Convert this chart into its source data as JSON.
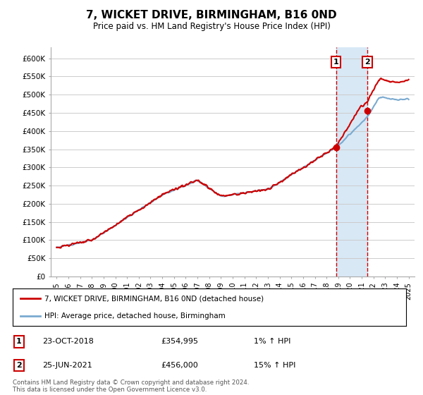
{
  "title": "7, WICKET DRIVE, BIRMINGHAM, B16 0ND",
  "subtitle": "Price paid vs. HM Land Registry's House Price Index (HPI)",
  "ylabel_ticks": [
    "£0",
    "£50K",
    "£100K",
    "£150K",
    "£200K",
    "£250K",
    "£300K",
    "£350K",
    "£400K",
    "£450K",
    "£500K",
    "£550K",
    "£600K"
  ],
  "ytick_values": [
    0,
    50000,
    100000,
    150000,
    200000,
    250000,
    300000,
    350000,
    400000,
    450000,
    500000,
    550000,
    600000
  ],
  "ylim": [
    0,
    630000
  ],
  "xlim_start": 1994.5,
  "xlim_end": 2025.5,
  "sale1_x": 2018.81,
  "sale1_y": 354995,
  "sale1_label": "1",
  "sale1_date": "23-OCT-2018",
  "sale1_price": "£354,995",
  "sale1_hpi": "1% ↑ HPI",
  "sale2_x": 2021.48,
  "sale2_y": 456000,
  "sale2_label": "2",
  "sale2_date": "25-JUN-2021",
  "sale2_price": "£456,000",
  "sale2_hpi": "15% ↑ HPI",
  "property_color": "#cc0000",
  "hpi_color": "#7aaad0",
  "vline_color": "#cc0000",
  "highlight_bg": "#d8e8f5",
  "legend_property": "7, WICKET DRIVE, BIRMINGHAM, B16 0ND (detached house)",
  "legend_hpi": "HPI: Average price, detached house, Birmingham",
  "footnote": "Contains HM Land Registry data © Crown copyright and database right 2024.\nThis data is licensed under the Open Government Licence v3.0.",
  "background_color": "#ffffff",
  "plot_bg": "#ffffff",
  "grid_color": "#cccccc"
}
